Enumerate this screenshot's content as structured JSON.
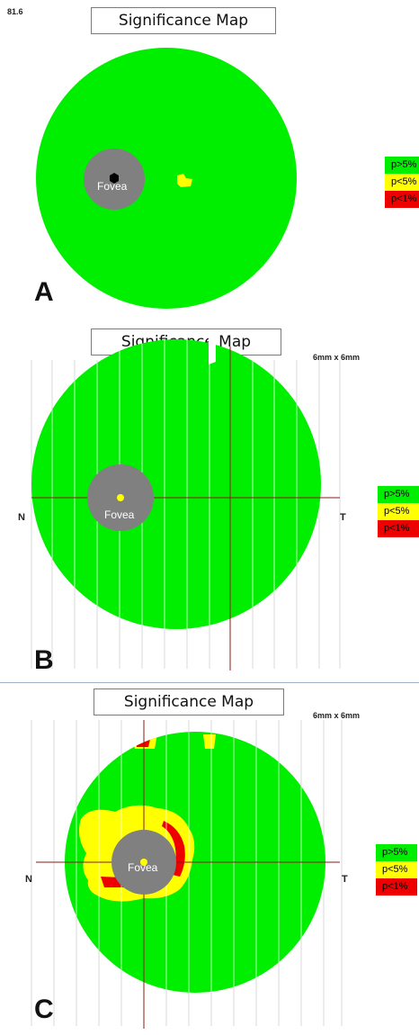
{
  "corner_value": "81.6",
  "legend": [
    {
      "label": "p>5%",
      "color": "#00ee00"
    },
    {
      "label": "p<5%",
      "color": "#ffff00"
    },
    {
      "label": "p<1%",
      "color": "#ee0000"
    }
  ],
  "colors": {
    "normal": "#00ee00",
    "borderline": "#ffff00",
    "abnormal": "#ee0000",
    "fovea": "#808080",
    "crosshair": "#8b1a1a",
    "gridline": "#d9d9d9"
  },
  "panels": [
    {
      "letter": "A",
      "title": "Significance Map",
      "fovea_label": "Fovea",
      "scale": "",
      "nasal_label": "",
      "temporal_label": ""
    },
    {
      "letter": "B",
      "title": "Significance Map",
      "fovea_label": "Fovea",
      "scale": "6mm x 6mm",
      "nasal_label": "N",
      "temporal_label": "T"
    },
    {
      "letter": "C",
      "title": "Significance Map",
      "fovea_label": "Fovea",
      "scale": "6mm x 6mm",
      "nasal_label": "N",
      "temporal_label": "T"
    }
  ]
}
